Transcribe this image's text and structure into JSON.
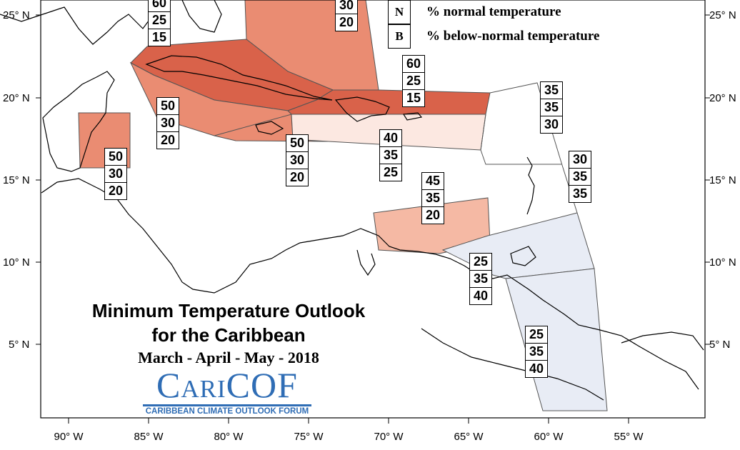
{
  "map": {
    "lat_labels": [
      "25° N",
      "20° N",
      "15° N",
      "10° N",
      "5° N"
    ],
    "lon_labels": [
      "90° W",
      "85° W",
      "80° W",
      "75° W",
      "70° W",
      "65° W",
      "60° W",
      "55° W"
    ]
  },
  "legend": {
    "items": [
      {
        "key": "N",
        "text": "% normal temperature"
      },
      {
        "key": "B",
        "text": "% below-normal temperature"
      }
    ]
  },
  "title": {
    "line1": "Minimum Temperature Outlook",
    "line2": "for the Caribbean",
    "period": "March - April - May - 2018"
  },
  "logo": {
    "name": "CariCOF",
    "subtitle": "CARIBBEAN CLIMATE OUTLOOK FORUM"
  },
  "colors": {
    "above_60": "#d9624a",
    "above_50": "#ea8c72",
    "above_45": "#f5b9a4",
    "above_40": "#fce8e1",
    "below_40": "#e8ecf5",
    "land_line": "#000000"
  },
  "probability_boxes": [
    {
      "id": "gulf-north-top",
      "values": [
        "60",
        "25",
        "15"
      ]
    },
    {
      "id": "bahamas-top",
      "values": [
        "30",
        "20"
      ]
    },
    {
      "id": "western-caribbean",
      "values": [
        "50",
        "30",
        "20"
      ]
    },
    {
      "id": "belize",
      "values": [
        "50",
        "30",
        "20"
      ]
    },
    {
      "id": "jamaica-region",
      "values": [
        "50",
        "30",
        "20"
      ]
    },
    {
      "id": "hispaniola",
      "values": [
        "60",
        "25",
        "15"
      ]
    },
    {
      "id": "puerto-rico",
      "values": [
        "40",
        "35",
        "25"
      ]
    },
    {
      "id": "leeward-islands",
      "values": [
        "35",
        "35",
        "30"
      ]
    },
    {
      "id": "windward-islands",
      "values": [
        "30",
        "35",
        "35"
      ]
    },
    {
      "id": "abc-islands",
      "values": [
        "45",
        "35",
        "20"
      ]
    },
    {
      "id": "trinidad",
      "values": [
        "25",
        "35",
        "40"
      ]
    },
    {
      "id": "guianas",
      "values": [
        "25",
        "35",
        "40"
      ]
    }
  ]
}
